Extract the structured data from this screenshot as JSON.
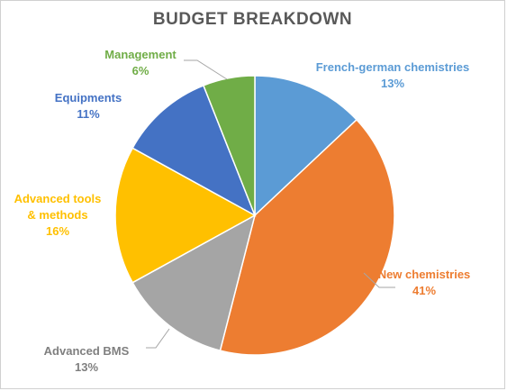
{
  "chart_data": {
    "type": "pie",
    "title": "BUDGET BREAKDOWN",
    "categories": [
      "French-german chemistries",
      "New chemistries",
      "Advanced BMS",
      "Advanced tools & methods",
      "Equipments",
      "Management"
    ],
    "values": [
      13,
      41,
      13,
      16,
      11,
      6
    ],
    "value_labels": [
      "13%",
      "41%",
      "13%",
      "16%",
      "11%",
      "6%"
    ],
    "colors": [
      "#5b9bd5",
      "#ed7d31",
      "#a5a5a5",
      "#ffc000",
      "#4472c4",
      "#70ad47"
    ],
    "label_lines": [
      [
        "French-german chemistries",
        "13%"
      ],
      [
        "New chemistries",
        "41%"
      ],
      [
        "Advanced BMS",
        "13%"
      ],
      [
        "Advanced tools",
        "& methods",
        "16%"
      ],
      [
        "Equipments",
        "11%"
      ],
      [
        "Management",
        "6%"
      ]
    ],
    "label_colors": [
      "#5b9bd5",
      "#ed7d31",
      "#7f7f7f",
      "#ffc000",
      "#4472c4",
      "#70ad47"
    ],
    "start_angle": "12 o'clock",
    "direction": "clockwise",
    "legend": "none"
  }
}
